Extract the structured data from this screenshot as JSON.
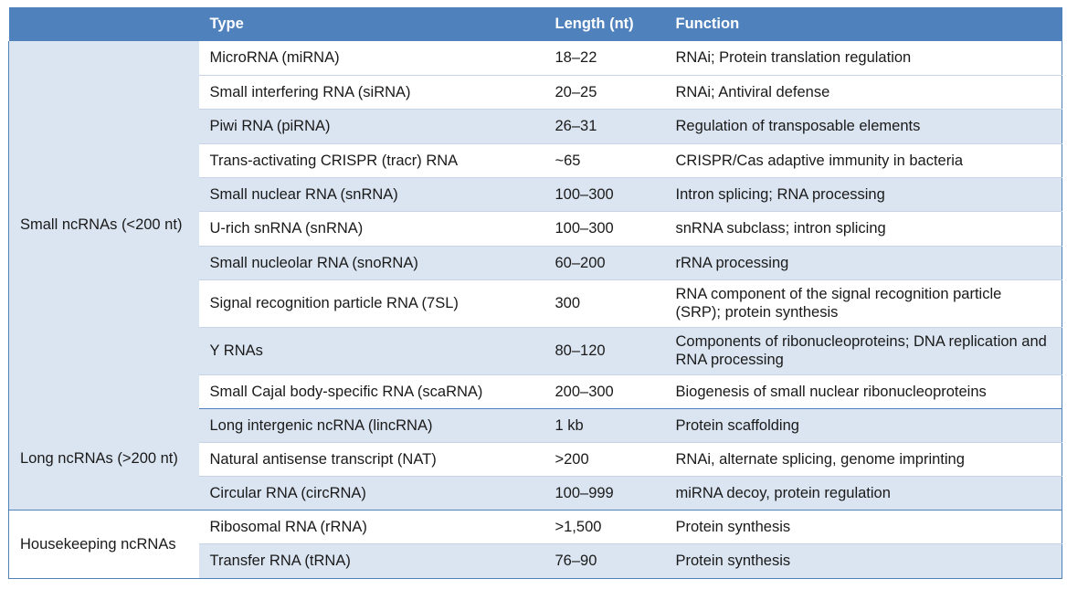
{
  "header": {
    "category": "",
    "type": "Type",
    "length": "Length (nt)",
    "function": "Function"
  },
  "groups": [
    {
      "category": "Small ncRNAs (<200 nt)",
      "rows": [
        {
          "type": "MicroRNA (miRNA)",
          "length": "18–22",
          "function": "RNAi; Protein translation regulation"
        },
        {
          "type": "Small interfering RNA (siRNA)",
          "length": "20–25",
          "function": "RNAi; Antiviral defense"
        },
        {
          "type": "Piwi RNA (piRNA)",
          "length": "26–31",
          "function": "Regulation of transposable elements"
        },
        {
          "type": "Trans-activating CRISPR (tracr) RNA",
          "length": "~65",
          "function": "CRISPR/Cas adaptive immunity in bacteria"
        },
        {
          "type": "Small nuclear RNA (snRNA)",
          "length": "100–300",
          "function": "Intron splicing; RNA processing"
        },
        {
          "type": "U-rich snRNA (snRNA)",
          "length": "100–300",
          "function": "snRNA subclass; intron splicing"
        },
        {
          "type": "Small nucleolar RNA (snoRNA)",
          "length": "60–200",
          "function": "rRNA processing"
        },
        {
          "type": "Signal recognition particle RNA (7SL)",
          "length": "300",
          "function": "RNA component of the signal recognition particle (SRP); protein synthesis"
        },
        {
          "type": "Y RNAs",
          "length": "80–120",
          "function": "Components of ribonucleoproteins; DNA replication and RNA processing"
        },
        {
          "type": "Small Cajal body-specific RNA (scaRNA)",
          "length": "200–300",
          "function": "Biogenesis of small nuclear ribonucleoproteins"
        }
      ]
    },
    {
      "category": "Long ncRNAs (>200 nt)",
      "rows": [
        {
          "type": "Long intergenic ncRNA (lincRNA)",
          "length": "1 kb",
          "function": "Protein scaffolding"
        },
        {
          "type": "Natural antisense transcript (NAT)",
          "length": ">200",
          "function": "RNAi, alternate splicing, genome imprinting"
        },
        {
          "type": "Circular RNA (circRNA)",
          "length": "100–999",
          "function": "miRNA decoy, protein regulation"
        }
      ]
    },
    {
      "category": "Housekeeping ncRNAs",
      "rows": [
        {
          "type": "Ribosomal RNA (rRNA)",
          "length": ">1,500",
          "function": "Protein synthesis"
        },
        {
          "type": "Transfer RNA (tRNA)",
          "length": "76–90",
          "function": "Protein synthesis"
        }
      ]
    }
  ]
}
